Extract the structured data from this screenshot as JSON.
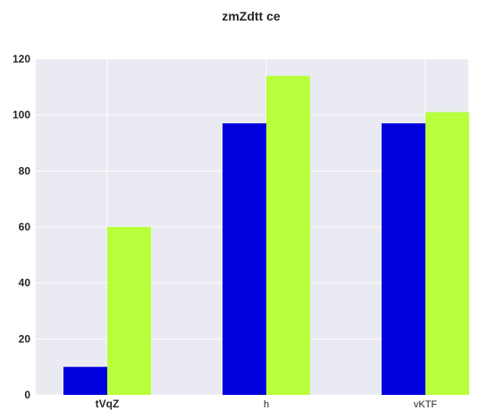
{
  "chart_data": {
    "type": "bar",
    "title": "zmZdtt ce",
    "xlabel": "",
    "ylabel": "",
    "categories": [
      "tVqZ",
      "h",
      "vKTF"
    ],
    "category_bold": [
      true,
      false,
      false
    ],
    "series": [
      {
        "values": [
          10,
          97,
          97
        ],
        "color": "#0000dd"
      },
      {
        "values": [
          60,
          114,
          101
        ],
        "color": "#b8ff3c"
      }
    ],
    "ylim": [
      0,
      120
    ],
    "yticks": [
      0,
      20,
      40,
      60,
      80,
      100,
      120
    ],
    "grid": true,
    "background": "#eaeaf2",
    "gridColor": "#ffffff"
  }
}
